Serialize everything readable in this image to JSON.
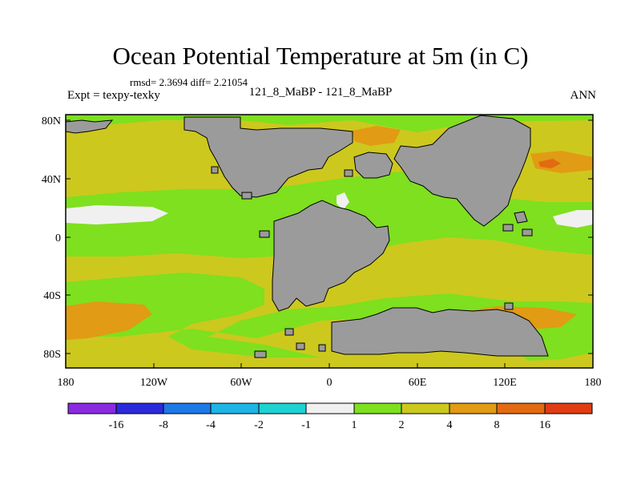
{
  "title": "Ocean Potential Temperature at 5m (in C)",
  "stats": "rmsd= 2.3694 diff= 2.21054",
  "subtitle": "121_8_MaBP - 121_8_MaBP",
  "expt_label": "Expt = texpy-texky",
  "period": "ANN",
  "lat_labels": [
    "80N",
    "40N",
    "0",
    "40S",
    "80S"
  ],
  "lon_labels": [
    "180",
    "120W",
    "60W",
    "0",
    "60E",
    "120E",
    "180"
  ],
  "colorbar": {
    "labels": [
      "-16",
      "-8",
      "-4",
      "-2",
      "-1",
      "1",
      "2",
      "4",
      "8",
      "16"
    ],
    "colors": [
      "#8a2be2",
      "#2a2adc",
      "#1e78e6",
      "#1eb4e6",
      "#1ed2d2",
      "#f0f0f0",
      "#7ee01e",
      "#cdc81e",
      "#e19b14",
      "#e36a10",
      "#e03c14"
    ]
  },
  "colors": {
    "land": "#9b9b9b",
    "warm": "#cdc81e",
    "green": "#7ee01e",
    "orange": "#e19b14",
    "deep_orange": "#e36a10",
    "neutral": "#f0f0f0"
  }
}
